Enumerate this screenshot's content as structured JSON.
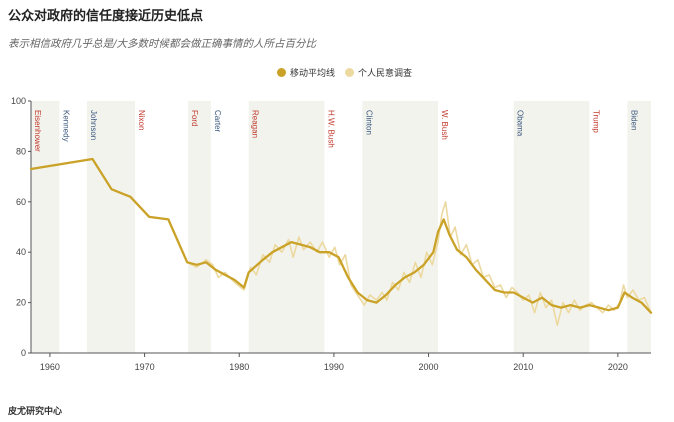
{
  "title": "公众对政府的信任度接近历史低点",
  "subtitle": "表示相信政府几乎总是/大多数时候都会做正确事情的人所占百分比",
  "source": "皮尤研究中心",
  "colors": {
    "moving_average": "#c9a227",
    "individual_polls": "#ecd9a0",
    "shade": "#f3f3ee",
    "democrat": "#3d5a80",
    "republican": "#c0392b"
  },
  "chart_data": {
    "type": "line",
    "title": "公众对政府的信任度接近历史低点",
    "subtitle": "表示相信政府几乎总是/大多数时候都会做正确事情的人所占百分比",
    "xlim": [
      1958,
      2023.5
    ],
    "ylim": [
      0,
      100
    ],
    "x_ticks": [
      "1960",
      "1970",
      "1980",
      "1990",
      "2000",
      "2010",
      "2020"
    ],
    "y_ticks": [
      "0",
      "20",
      "40",
      "60",
      "80",
      "100"
    ],
    "grid": false,
    "legend_position": "top",
    "presidents": [
      {
        "name": "Eisenhower",
        "start": 1958,
        "end": 1961,
        "party": "R",
        "shaded": true
      },
      {
        "name": "Kennedy",
        "start": 1961,
        "end": 1963.9,
        "party": "D",
        "shaded": false
      },
      {
        "name": "Johnson",
        "start": 1963.9,
        "end": 1969,
        "party": "D",
        "shaded": true
      },
      {
        "name": "Nixon",
        "start": 1969,
        "end": 1974.6,
        "party": "R",
        "shaded": false
      },
      {
        "name": "Ford",
        "start": 1974.6,
        "end": 1977,
        "party": "R",
        "shaded": true
      },
      {
        "name": "Carter",
        "start": 1977,
        "end": 1981,
        "party": "D",
        "shaded": false
      },
      {
        "name": "Reagan",
        "start": 1981,
        "end": 1989,
        "party": "R",
        "shaded": true
      },
      {
        "name": "H.W. Bush",
        "start": 1989,
        "end": 1993,
        "party": "R",
        "shaded": false
      },
      {
        "name": "Clinton",
        "start": 1993,
        "end": 2001,
        "party": "D",
        "shaded": true
      },
      {
        "name": "W. Bush",
        "start": 2001,
        "end": 2009,
        "party": "R",
        "shaded": false
      },
      {
        "name": "Obama",
        "start": 2009,
        "end": 2017,
        "party": "D",
        "shaded": true
      },
      {
        "name": "Trump",
        "start": 2017,
        "end": 2021,
        "party": "R",
        "shaded": false
      },
      {
        "name": "Biden",
        "start": 2021,
        "end": 2023.5,
        "party": "D",
        "shaded": true
      }
    ],
    "series": [
      {
        "name": "移动平均线",
        "x": [
          1958,
          1964.5,
          1966.5,
          1968.5,
          1970.5,
          1972.5,
          1974.5,
          1975.5,
          1976.5,
          1977.5,
          1978.5,
          1979.5,
          1980.5,
          1981,
          1982.5,
          1983.5,
          1984.5,
          1985.5,
          1986.5,
          1987.5,
          1988.5,
          1989.5,
          1990.5,
          1991.5,
          1992.5,
          1993.5,
          1994.5,
          1995.5,
          1996.5,
          1997.5,
          1998.5,
          1999.5,
          2000.5,
          2001,
          2001.6,
          2002.2,
          2003,
          2004,
          2005,
          2006,
          2007,
          2008,
          2009,
          2010,
          2011,
          2012,
          2013,
          2014,
          2015,
          2016,
          2017,
          2018,
          2019,
          2020,
          2020.7,
          2021.5,
          2022.5,
          2023.5
        ],
        "y": [
          73,
          77,
          65,
          62,
          54,
          53,
          36,
          35,
          36,
          33,
          31,
          29,
          26,
          32,
          37,
          40,
          42,
          44,
          43,
          42,
          40,
          40,
          38,
          30,
          24,
          21,
          20,
          23,
          27,
          30,
          32,
          35,
          40,
          48,
          53,
          47,
          41,
          38,
          33,
          29,
          25,
          24,
          24,
          22,
          20,
          22,
          19,
          18,
          19,
          18,
          19,
          18,
          17,
          18,
          24,
          22,
          20,
          16
        ]
      },
      {
        "name": "个人民意调查",
        "x": [
          1958,
          1964.5,
          1966.5,
          1968.5,
          1970.5,
          1972.5,
          1974.5,
          1975.5,
          1976.5,
          1977.2,
          1977.8,
          1978.5,
          1979.5,
          1980.5,
          1981.2,
          1981.8,
          1982.5,
          1983.2,
          1983.8,
          1984.5,
          1985.2,
          1985.7,
          1986.3,
          1986.8,
          1987.5,
          1988.2,
          1988.8,
          1989.5,
          1990.1,
          1990.6,
          1991.2,
          1991.8,
          1992.5,
          1993.2,
          1993.8,
          1994.5,
          1995.1,
          1995.6,
          1996.2,
          1996.8,
          1997.4,
          1998,
          1998.6,
          1999.2,
          1999.8,
          2000.4,
          2001,
          2001.4,
          2001.8,
          2002.3,
          2002.8,
          2003.4,
          2004,
          2004.6,
          2005.2,
          2005.8,
          2006.4,
          2007,
          2007.6,
          2008.2,
          2008.8,
          2009.4,
          2010,
          2010.6,
          2011.2,
          2011.8,
          2012.4,
          2013,
          2013.6,
          2014.2,
          2014.8,
          2015.4,
          2016,
          2016.6,
          2017.2,
          2017.8,
          2018.4,
          2019,
          2019.6,
          2020.2,
          2020.6,
          2021,
          2021.6,
          2022.2,
          2022.8,
          2023.5
        ],
        "y": [
          73,
          77,
          65,
          62,
          54,
          53,
          36,
          34,
          37,
          35,
          30,
          32,
          28,
          25,
          34,
          31,
          39,
          36,
          43,
          40,
          45,
          38,
          46,
          41,
          44,
          40,
          44,
          38,
          42,
          35,
          39,
          27,
          23,
          19,
          23,
          21,
          24,
          21,
          28,
          25,
          32,
          28,
          36,
          30,
          40,
          35,
          44,
          55,
          60,
          46,
          50,
          39,
          43,
          35,
          37,
          30,
          31,
          26,
          27,
          22,
          26,
          24,
          21,
          23,
          16,
          24,
          18,
          21,
          11,
          20,
          16,
          21,
          17,
          19,
          20,
          18,
          16,
          19,
          17,
          20,
          27,
          22,
          25,
          21,
          22,
          16
        ]
      }
    ]
  }
}
